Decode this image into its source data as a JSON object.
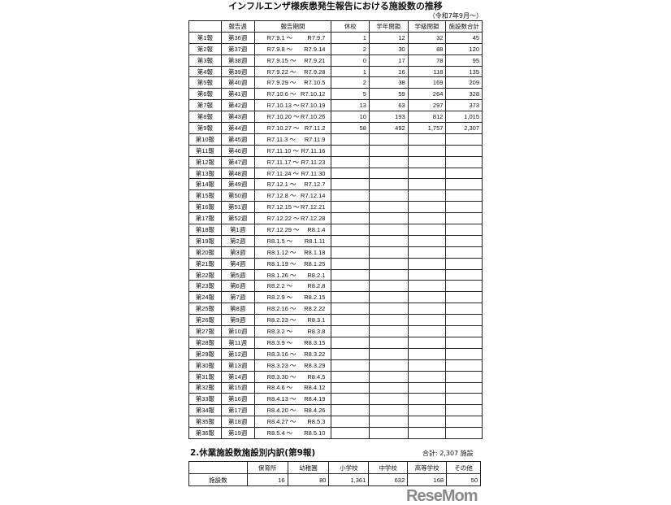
{
  "title": "インフルエンザ様疾患発生報告における施設数の推移",
  "subtitle": "（令和7年9月～）",
  "headers": [
    "",
    "報告週",
    "報告期間",
    "休校",
    "学年閉鎖",
    "学級閉鎖",
    "施設数合計"
  ],
  "tilde": "～",
  "rows": [
    [
      "第1報",
      "第36週",
      "R7.9.1",
      "R7.9.7",
      "1",
      "12",
      "32",
      "45"
    ],
    [
      "第2報",
      "第37週",
      "R7.9.8",
      "R7.9.14",
      "2",
      "30",
      "88",
      "120"
    ],
    [
      "第3報",
      "第38週",
      "R7.9.15",
      "R7.9.21",
      "0",
      "17",
      "78",
      "95"
    ],
    [
      "第4報",
      "第39週",
      "R7.9.22",
      "R7.9.28",
      "1",
      "16",
      "118",
      "135"
    ],
    [
      "第5報",
      "第40週",
      "R7.9.29",
      "R7.10.5",
      "2",
      "38",
      "169",
      "209"
    ],
    [
      "第6報",
      "第41週",
      "R7.10.6",
      "R7.10.12",
      "5",
      "59",
      "264",
      "328"
    ],
    [
      "第7報",
      "第42週",
      "R7.10.13",
      "R7.10.19",
      "13",
      "63",
      "297",
      "373"
    ],
    [
      "第8報",
      "第43週",
      "R7.10.20",
      "R7.10.26",
      "10",
      "193",
      "812",
      "1,015"
    ],
    [
      "第9報",
      "第44週",
      "R7.10.27",
      "R7.11.2",
      "58",
      "492",
      "1,757",
      "2,307"
    ],
    [
      "第10報",
      "第45週",
      "R7.11.3",
      "R7.11.9",
      "",
      "",
      "",
      ""
    ],
    [
      "第11報",
      "第46週",
      "R7.11.10",
      "R7.11.16",
      "",
      "",
      "",
      ""
    ],
    [
      "第12報",
      "第47週",
      "R7.11.17",
      "R7.11.23",
      "",
      "",
      "",
      ""
    ],
    [
      "第13報",
      "第48週",
      "R7.11.24",
      "R7.11.30",
      "",
      "",
      "",
      ""
    ],
    [
      "第14報",
      "第49週",
      "R7.12.1",
      "R7.12.7",
      "",
      "",
      "",
      ""
    ],
    [
      "第15報",
      "第50週",
      "R7.12.8",
      "R7.12.14",
      "",
      "",
      "",
      ""
    ],
    [
      "第16報",
      "第51週",
      "R7.12.15",
      "R7.12.21",
      "",
      "",
      "",
      ""
    ],
    [
      "第17報",
      "第52週",
      "R7.12.22",
      "R7.12.28",
      "",
      "",
      "",
      ""
    ],
    [
      "第18報",
      "第1週",
      "R7.12.29",
      "R8.1.4",
      "",
      "",
      "",
      ""
    ],
    [
      "第19報",
      "第2週",
      "R8.1.5",
      "R8.1.11",
      "",
      "",
      "",
      ""
    ],
    [
      "第20報",
      "第3週",
      "R8.1.12",
      "R8.1.18",
      "",
      "",
      "",
      ""
    ],
    [
      "第21報",
      "第4週",
      "R8.1.19",
      "R8.1.25",
      "",
      "",
      "",
      ""
    ],
    [
      "第22報",
      "第5週",
      "R8.1.26",
      "R8.2.1",
      "",
      "",
      "",
      ""
    ],
    [
      "第23報",
      "第6週",
      "R8.2.2",
      "R8.2.8",
      "",
      "",
      "",
      ""
    ],
    [
      "第24報",
      "第7週",
      "R8.2.9",
      "R8.2.15",
      "",
      "",
      "",
      ""
    ],
    [
      "第25報",
      "第8週",
      "R8.2.16",
      "R8.2.22",
      "",
      "",
      "",
      ""
    ],
    [
      "第26報",
      "第9週",
      "R8.2.23",
      "R8.3.1",
      "",
      "",
      "",
      ""
    ],
    [
      "第27報",
      "第10週",
      "R8.3.2",
      "R8.3.8",
      "",
      "",
      "",
      ""
    ],
    [
      "第28報",
      "第11週",
      "R8.3.9",
      "R8.3.15",
      "",
      "",
      "",
      ""
    ],
    [
      "第29報",
      "第12週",
      "R8.3.16",
      "R8.3.22",
      "",
      "",
      "",
      ""
    ],
    [
      "第30報",
      "第13週",
      "R8.3.23",
      "R8.3.29",
      "",
      "",
      "",
      ""
    ],
    [
      "第31報",
      "第14週",
      "R8.3.30",
      "R8.4.5",
      "",
      "",
      "",
      ""
    ],
    [
      "第32報",
      "第15週",
      "R8.4.6",
      "R8.4.12",
      "",
      "",
      "",
      ""
    ],
    [
      "第33報",
      "第16週",
      "R8.4.13",
      "R8.4.19",
      "",
      "",
      "",
      ""
    ],
    [
      "第34報",
      "第17週",
      "R8.4.20",
      "R8.4.26",
      "",
      "",
      "",
      ""
    ],
    [
      "第35報",
      "第18週",
      "R8.4.27",
      "R8.5.3",
      "",
      "",
      "",
      ""
    ],
    [
      "第36報",
      "第19週",
      "R8.5.4",
      "R8.5.10",
      "",
      "",
      "",
      ""
    ]
  ],
  "breakdown": {
    "heading": "2.休業施設数施設別内訳(第9報)",
    "total": "合計:  2,307  施設",
    "headers": [
      "",
      "保育所",
      "幼稚園",
      "小学校",
      "中学校",
      "高等学校",
      "その他"
    ],
    "row": [
      "施設数",
      "16",
      "80",
      "1,361",
      "632",
      "168",
      "50"
    ]
  },
  "watermark": "ReseMom"
}
